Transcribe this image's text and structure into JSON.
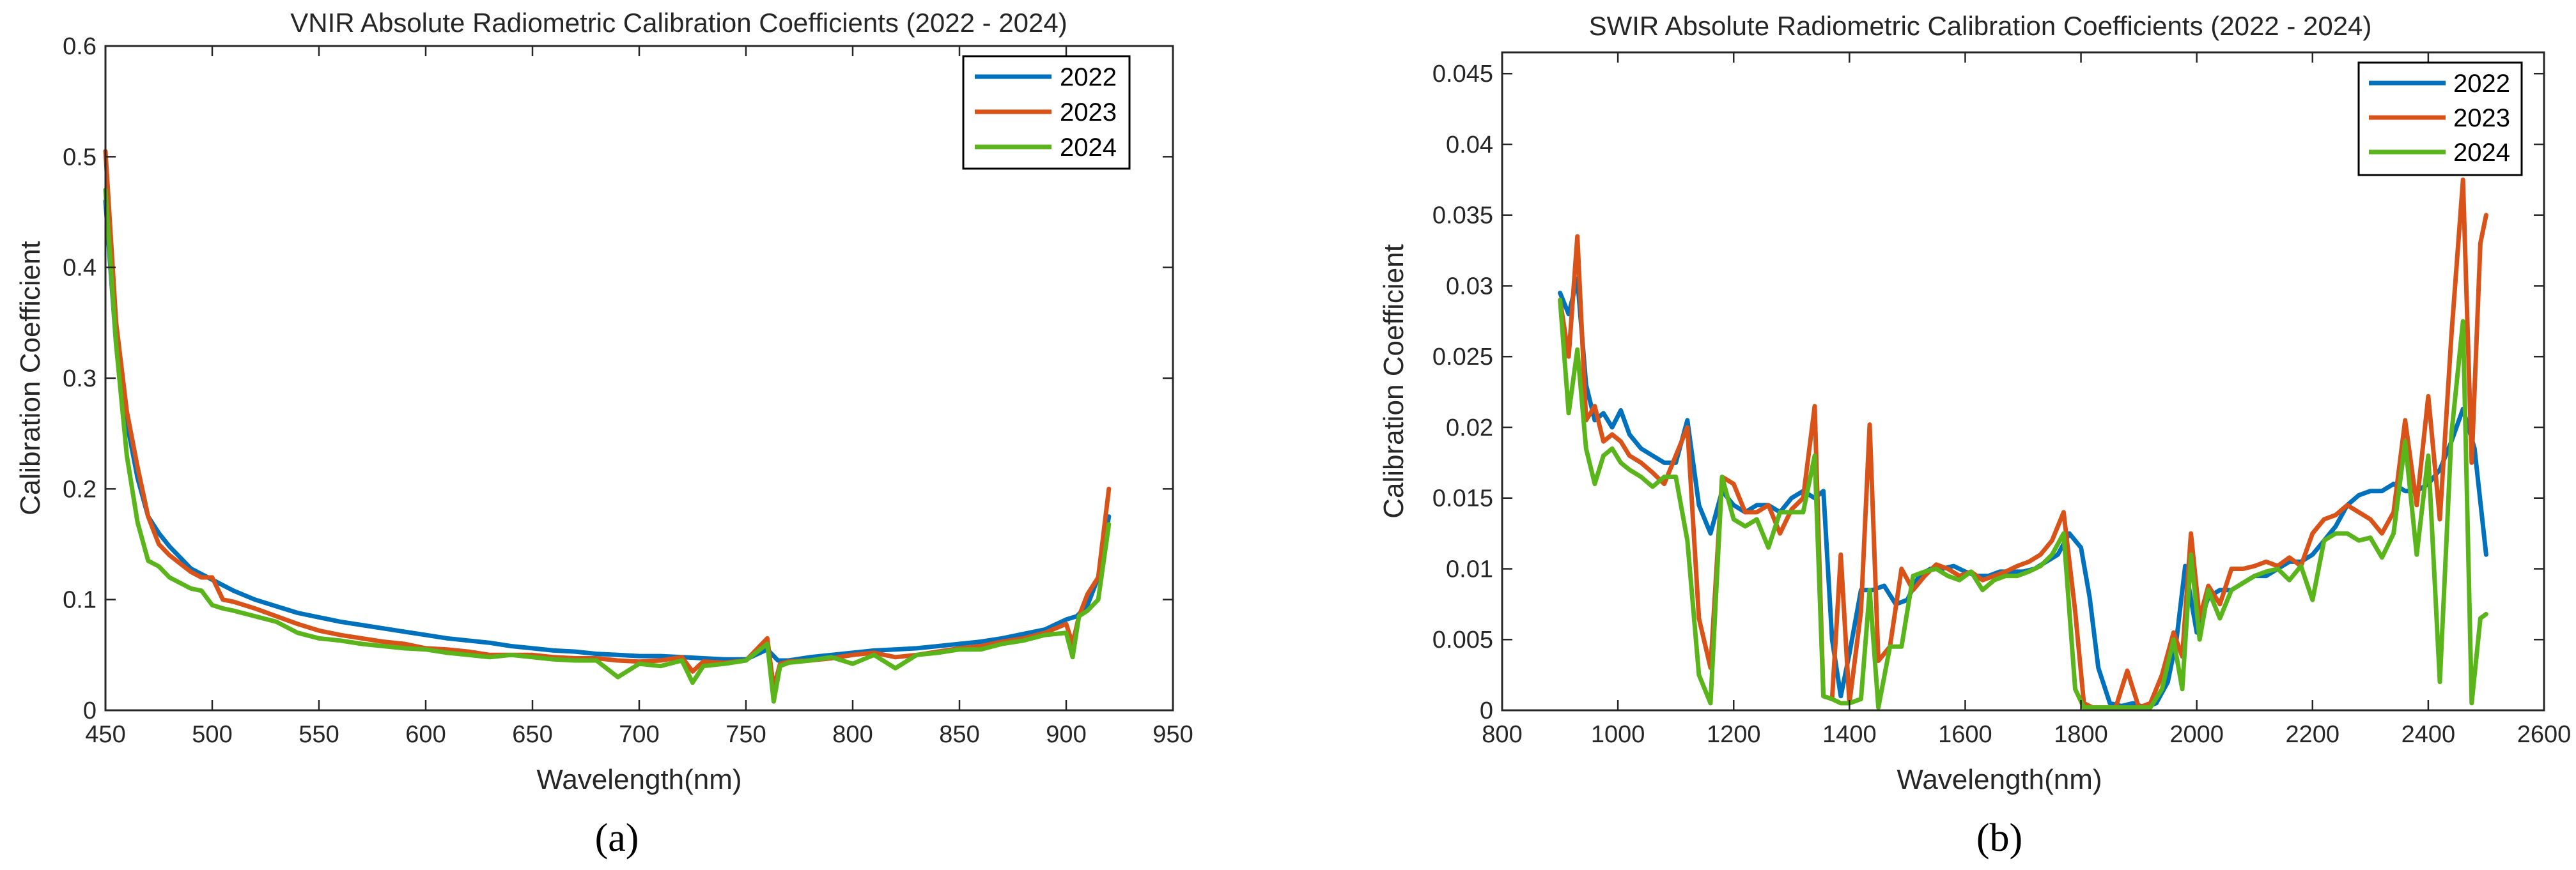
{
  "series_colors": {
    "2022": "#0072BD",
    "2023": "#D95319",
    "2024": "#59B51A"
  },
  "chart_data": [
    {
      "type": "line",
      "panel_label": "(a)",
      "title": "VNIR Absolute Radiometric Calibration Coefficients (2022 - 2024)",
      "xlabel": "Wavelength(nm)",
      "ylabel": "Calibration Coefficient",
      "xlim": [
        450,
        950
      ],
      "ylim": [
        0,
        0.6
      ],
      "xticks": [
        450,
        500,
        550,
        600,
        650,
        700,
        750,
        800,
        850,
        900,
        950
      ],
      "yticks": [
        0,
        0.1,
        0.2,
        0.3,
        0.4,
        0.5,
        0.6
      ],
      "xtick_labels": [
        "450",
        "500",
        "550",
        "600",
        "650",
        "700",
        "750",
        "800",
        "850",
        "900",
        "950"
      ],
      "ytick_labels": [
        "0",
        "0.1",
        "0.2",
        "0.3",
        "0.4",
        "0.5",
        "0.6"
      ],
      "legend_position": "top-right",
      "series": [
        {
          "name": "2022",
          "x": [
            450,
            455,
            460,
            465,
            470,
            475,
            480,
            490,
            500,
            510,
            520,
            530,
            540,
            550,
            560,
            570,
            580,
            590,
            600,
            610,
            620,
            630,
            640,
            650,
            660,
            670,
            680,
            690,
            700,
            710,
            720,
            730,
            740,
            750,
            760,
            765,
            770,
            780,
            790,
            800,
            810,
            820,
            830,
            840,
            850,
            860,
            870,
            880,
            890,
            900,
            905,
            910,
            915,
            920
          ],
          "y": [
            0.46,
            0.33,
            0.26,
            0.21,
            0.175,
            0.16,
            0.148,
            0.128,
            0.118,
            0.108,
            0.1,
            0.094,
            0.088,
            0.084,
            0.08,
            0.077,
            0.074,
            0.071,
            0.068,
            0.065,
            0.063,
            0.061,
            0.058,
            0.056,
            0.054,
            0.053,
            0.051,
            0.05,
            0.049,
            0.049,
            0.048,
            0.047,
            0.046,
            0.046,
            0.055,
            0.045,
            0.045,
            0.048,
            0.05,
            0.052,
            0.054,
            0.055,
            0.056,
            0.058,
            0.06,
            0.062,
            0.065,
            0.069,
            0.073,
            0.082,
            0.085,
            0.095,
            0.12,
            0.175
          ]
        },
        {
          "name": "2023",
          "x": [
            450,
            455,
            460,
            465,
            470,
            475,
            480,
            490,
            495,
            500,
            505,
            510,
            520,
            530,
            540,
            550,
            560,
            570,
            580,
            590,
            600,
            610,
            620,
            630,
            640,
            650,
            660,
            670,
            680,
            690,
            700,
            710,
            720,
            725,
            730,
            740,
            750,
            760,
            763,
            766,
            770,
            780,
            790,
            800,
            810,
            820,
            830,
            840,
            850,
            860,
            870,
            880,
            890,
            900,
            903,
            906,
            910,
            915,
            920
          ],
          "y": [
            0.505,
            0.35,
            0.27,
            0.22,
            0.175,
            0.15,
            0.14,
            0.125,
            0.12,
            0.12,
            0.1,
            0.098,
            0.092,
            0.085,
            0.078,
            0.072,
            0.068,
            0.065,
            0.062,
            0.06,
            0.056,
            0.055,
            0.053,
            0.05,
            0.05,
            0.05,
            0.048,
            0.047,
            0.047,
            0.045,
            0.044,
            0.045,
            0.048,
            0.035,
            0.044,
            0.043,
            0.045,
            0.065,
            0.02,
            0.042,
            0.044,
            0.045,
            0.047,
            0.05,
            0.052,
            0.048,
            0.05,
            0.053,
            0.056,
            0.058,
            0.062,
            0.065,
            0.07,
            0.078,
            0.06,
            0.085,
            0.105,
            0.12,
            0.2
          ]
        },
        {
          "name": "2024",
          "x": [
            450,
            455,
            460,
            465,
            470,
            475,
            480,
            490,
            495,
            500,
            505,
            510,
            520,
            530,
            540,
            550,
            560,
            570,
            580,
            590,
            600,
            610,
            620,
            630,
            640,
            650,
            660,
            670,
            680,
            690,
            700,
            710,
            720,
            725,
            730,
            740,
            750,
            760,
            763,
            766,
            770,
            780,
            790,
            800,
            810,
            820,
            830,
            840,
            850,
            860,
            870,
            880,
            890,
            900,
            903,
            906,
            910,
            915,
            920
          ],
          "y": [
            0.47,
            0.33,
            0.23,
            0.17,
            0.135,
            0.13,
            0.12,
            0.11,
            0.108,
            0.095,
            0.092,
            0.09,
            0.085,
            0.08,
            0.07,
            0.065,
            0.063,
            0.06,
            0.058,
            0.056,
            0.055,
            0.052,
            0.05,
            0.048,
            0.05,
            0.048,
            0.046,
            0.045,
            0.045,
            0.03,
            0.042,
            0.04,
            0.045,
            0.025,
            0.04,
            0.042,
            0.045,
            0.06,
            0.008,
            0.04,
            0.043,
            0.045,
            0.048,
            0.042,
            0.05,
            0.038,
            0.05,
            0.052,
            0.055,
            0.055,
            0.06,
            0.063,
            0.068,
            0.07,
            0.048,
            0.085,
            0.09,
            0.1,
            0.168
          ]
        }
      ]
    },
    {
      "type": "line",
      "panel_label": "(b)",
      "title": "SWIR Absolute Radiometric Calibration Coefficients (2022 - 2024)",
      "xlabel": "Wavelength(nm)",
      "ylabel": "Calibration Coefficient",
      "xlim": [
        800,
        2600
      ],
      "ylim": [
        0,
        0.0465
      ],
      "xticks": [
        800,
        1000,
        1200,
        1400,
        1600,
        1800,
        2000,
        2200,
        2400,
        2600
      ],
      "yticks": [
        0,
        0.005,
        0.01,
        0.015,
        0.02,
        0.025,
        0.03,
        0.035,
        0.04,
        0.045
      ],
      "xtick_labels": [
        "800",
        "1000",
        "1200",
        "1400",
        "1600",
        "1800",
        "2000",
        "2200",
        "2400",
        "2600"
      ],
      "ytick_labels": [
        "0",
        "0.005",
        "0.01",
        "0.015",
        "0.02",
        "0.025",
        "0.03",
        "0.035",
        "0.04",
        "0.045"
      ],
      "legend_position": "top-right",
      "series": [
        {
          "name": "2022",
          "x": [
            900,
            915,
            930,
            945,
            960,
            975,
            990,
            1005,
            1020,
            1040,
            1060,
            1080,
            1100,
            1120,
            1140,
            1160,
            1180,
            1200,
            1220,
            1240,
            1260,
            1280,
            1300,
            1320,
            1340,
            1355,
            1370,
            1385,
            1400,
            1420,
            1440,
            1460,
            1480,
            1500,
            1520,
            1540,
            1560,
            1580,
            1600,
            1620,
            1640,
            1660,
            1680,
            1700,
            1720,
            1740,
            1760,
            1780,
            1800,
            1815,
            1830,
            1850,
            1870,
            1890,
            1910,
            1930,
            1950,
            1965,
            1980,
            2000,
            2020,
            2040,
            2060,
            2080,
            2100,
            2120,
            2140,
            2160,
            2180,
            2200,
            2220,
            2240,
            2260,
            2280,
            2300,
            2320,
            2340,
            2360,
            2380,
            2400,
            2420,
            2440,
            2460,
            2480,
            2500
          ],
          "y": [
            0.0295,
            0.028,
            0.0305,
            0.023,
            0.0205,
            0.021,
            0.02,
            0.0212,
            0.0195,
            0.0185,
            0.018,
            0.0175,
            0.0175,
            0.0205,
            0.0145,
            0.0125,
            0.0155,
            0.0145,
            0.014,
            0.0145,
            0.0145,
            0.014,
            0.015,
            0.0155,
            0.015,
            0.0155,
            0.005,
            0.001,
            0.004,
            0.0085,
            0.0085,
            0.0088,
            0.0075,
            0.0078,
            0.0095,
            0.01,
            0.01,
            0.0102,
            0.0098,
            0.0095,
            0.0095,
            0.0098,
            0.0098,
            0.0098,
            0.01,
            0.0105,
            0.011,
            0.0125,
            0.0115,
            0.008,
            0.003,
            0.0005,
            0.0003,
            0.0005,
            0.0002,
            0.0005,
            0.002,
            0.005,
            0.0102,
            0.0055,
            0.008,
            0.0085,
            0.0085,
            0.009,
            0.0095,
            0.0095,
            0.01,
            0.0105,
            0.0105,
            0.011,
            0.012,
            0.013,
            0.0145,
            0.0152,
            0.0155,
            0.0155,
            0.016,
            0.0155,
            0.0155,
            0.016,
            0.017,
            0.019,
            0.0213,
            0.0185,
            0.011
          ]
        },
        {
          "name": "2023",
          "x": [
            900,
            915,
            930,
            945,
            960,
            975,
            990,
            1005,
            1020,
            1040,
            1060,
            1080,
            1100,
            1120,
            1140,
            1160,
            1180,
            1200,
            1220,
            1240,
            1260,
            1280,
            1300,
            1320,
            1340,
            1355,
            1370,
            1385,
            1400,
            1420,
            1435,
            1450,
            1470,
            1490,
            1510,
            1530,
            1550,
            1570,
            1590,
            1610,
            1630,
            1650,
            1670,
            1690,
            1710,
            1730,
            1750,
            1770,
            1790,
            1805,
            1820,
            1840,
            1860,
            1880,
            1900,
            1920,
            1940,
            1960,
            1975,
            1990,
            2005,
            2020,
            2040,
            2060,
            2080,
            2100,
            2120,
            2140,
            2160,
            2180,
            2200,
            2220,
            2240,
            2260,
            2280,
            2300,
            2320,
            2340,
            2360,
            2380,
            2400,
            2420,
            2440,
            2460,
            2475,
            2490,
            2500
          ],
          "y": [
            0.029,
            0.025,
            0.0335,
            0.0205,
            0.0215,
            0.019,
            0.0195,
            0.019,
            0.018,
            0.0175,
            0.0168,
            0.016,
            0.018,
            0.02,
            0.0065,
            0.003,
            0.0165,
            0.016,
            0.014,
            0.014,
            0.0145,
            0.0125,
            0.0142,
            0.015,
            0.0215,
            0.001,
            0.0008,
            0.011,
            0.0005,
            0.007,
            0.0202,
            0.0035,
            0.0045,
            0.01,
            0.0085,
            0.0095,
            0.0103,
            0.01,
            0.0095,
            0.0098,
            0.0092,
            0.0095,
            0.0098,
            0.0102,
            0.0105,
            0.011,
            0.012,
            0.014,
            0.007,
            0.0005,
            0.0002,
            0.0002,
            0.0002,
            0.0028,
            0.0002,
            0.0005,
            0.0025,
            0.0055,
            0.0038,
            0.0125,
            0.0065,
            0.0088,
            0.0075,
            0.01,
            0.01,
            0.0102,
            0.0105,
            0.0102,
            0.0108,
            0.0102,
            0.0125,
            0.0135,
            0.0138,
            0.0145,
            0.014,
            0.0135,
            0.0125,
            0.014,
            0.0205,
            0.0145,
            0.0222,
            0.0135,
            0.0265,
            0.0375,
            0.0175,
            0.033,
            0.035
          ]
        },
        {
          "name": "2024",
          "x": [
            900,
            915,
            930,
            945,
            960,
            975,
            990,
            1005,
            1020,
            1040,
            1060,
            1080,
            1100,
            1120,
            1140,
            1160,
            1180,
            1200,
            1220,
            1240,
            1260,
            1280,
            1300,
            1320,
            1340,
            1355,
            1370,
            1385,
            1400,
            1420,
            1435,
            1450,
            1470,
            1490,
            1510,
            1530,
            1550,
            1570,
            1590,
            1610,
            1630,
            1650,
            1670,
            1690,
            1710,
            1730,
            1750,
            1770,
            1790,
            1805,
            1820,
            1840,
            1860,
            1880,
            1900,
            1920,
            1940,
            1960,
            1975,
            1990,
            2005,
            2020,
            2040,
            2060,
            2080,
            2100,
            2120,
            2140,
            2160,
            2180,
            2200,
            2220,
            2240,
            2260,
            2280,
            2300,
            2320,
            2340,
            2360,
            2380,
            2400,
            2420,
            2440,
            2460,
            2475,
            2490,
            2500
          ],
          "y": [
            0.029,
            0.021,
            0.0255,
            0.0185,
            0.016,
            0.018,
            0.0185,
            0.0175,
            0.017,
            0.0165,
            0.0158,
            0.0165,
            0.0165,
            0.012,
            0.0025,
            0.0005,
            0.0165,
            0.0135,
            0.013,
            0.0135,
            0.0115,
            0.014,
            0.014,
            0.014,
            0.018,
            0.001,
            0.0008,
            0.0005,
            0.0005,
            0.0008,
            0.0085,
            0.0002,
            0.0045,
            0.0045,
            0.0095,
            0.0098,
            0.01,
            0.0095,
            0.0092,
            0.0098,
            0.0085,
            0.0092,
            0.0095,
            0.0095,
            0.0098,
            0.0102,
            0.011,
            0.0125,
            0.0015,
            0.0002,
            0.0002,
            0.0002,
            0.0002,
            0.0002,
            0.0002,
            0.0002,
            0.0015,
            0.005,
            0.0015,
            0.011,
            0.005,
            0.0085,
            0.0065,
            0.0085,
            0.009,
            0.0095,
            0.0098,
            0.01,
            0.0092,
            0.0102,
            0.0078,
            0.012,
            0.0125,
            0.0125,
            0.012,
            0.0122,
            0.0108,
            0.0125,
            0.019,
            0.011,
            0.018,
            0.002,
            0.0195,
            0.0275,
            0.0005,
            0.0065,
            0.0068
          ]
        }
      ]
    }
  ]
}
